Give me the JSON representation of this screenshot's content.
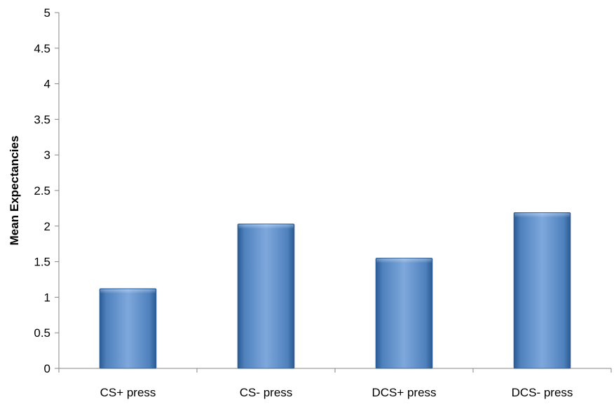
{
  "chart_data": {
    "type": "bar",
    "title": "",
    "xlabel": "",
    "ylabel": "Mean Expectancies",
    "categories": [
      "CS+ press",
      "CS- press",
      "DCS+ press",
      "DCS- press"
    ],
    "values": [
      1.12,
      2.03,
      1.55,
      2.19
    ],
    "ylim": [
      0,
      5
    ],
    "yticks": [
      "0",
      "0.5",
      "1",
      "1.5",
      "2",
      "2.5",
      "3",
      "3.5",
      "4",
      "4.5",
      "5"
    ],
    "grid": false,
    "legend": "none",
    "bar_color": "#4f81bd",
    "bar_color_dark": "#2a5b93",
    "bar_color_light": "#7ea8dc"
  }
}
